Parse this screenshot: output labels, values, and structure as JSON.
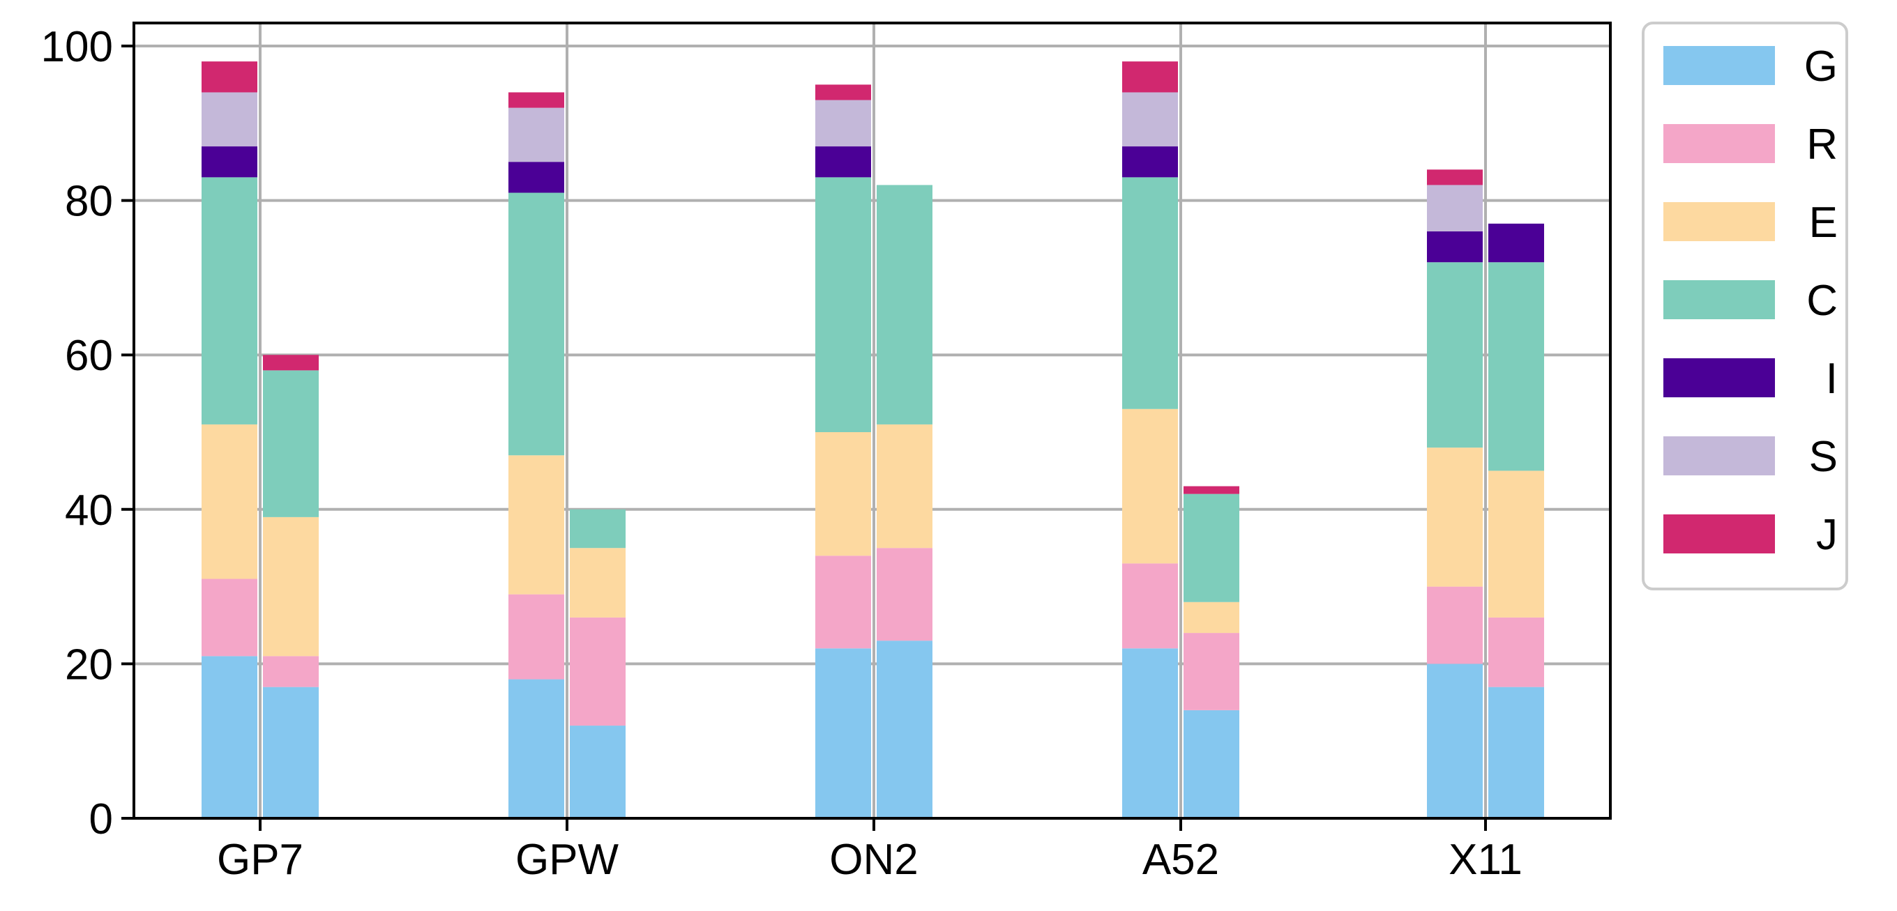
{
  "chart_data": {
    "type": "bar",
    "stacked": true,
    "grouped": true,
    "categories": [
      "GP7",
      "GPW",
      "ON2",
      "A52",
      "X11"
    ],
    "ylim": [
      0,
      100
    ],
    "yticks": [
      0,
      20,
      40,
      60,
      80,
      100
    ],
    "grid": true,
    "legend_position": "outside-right-top",
    "series": [
      {
        "name": "G",
        "color": "#85C7EF",
        "left": [
          21,
          18,
          22,
          22,
          20
        ],
        "right": [
          17,
          12,
          23,
          14,
          17
        ]
      },
      {
        "name": "R",
        "color": "#F4A6C8",
        "left": [
          10,
          11,
          12,
          11,
          10
        ],
        "right": [
          4,
          14,
          12,
          10,
          9
        ]
      },
      {
        "name": "E",
        "color": "#FDD9A0",
        "left": [
          20,
          18,
          16,
          20,
          18
        ],
        "right": [
          18,
          9,
          16,
          4,
          19
        ]
      },
      {
        "name": "C",
        "color": "#7ECDBB",
        "left": [
          32,
          34,
          33,
          30,
          24
        ],
        "right": [
          19,
          5,
          31,
          14,
          27
        ]
      },
      {
        "name": "I",
        "color": "#4B0096",
        "left": [
          4,
          4,
          4,
          4,
          4
        ],
        "right": [
          0,
          0,
          0,
          0,
          5
        ]
      },
      {
        "name": "S",
        "color": "#C4B8D9",
        "left": [
          7,
          7,
          6,
          7,
          6
        ],
        "right": [
          0,
          0,
          0,
          0,
          0
        ]
      },
      {
        "name": "J",
        "color": "#D1286F",
        "left": [
          4,
          2,
          2,
          4,
          2
        ],
        "right": [
          2,
          0,
          0,
          1,
          0
        ]
      }
    ]
  }
}
